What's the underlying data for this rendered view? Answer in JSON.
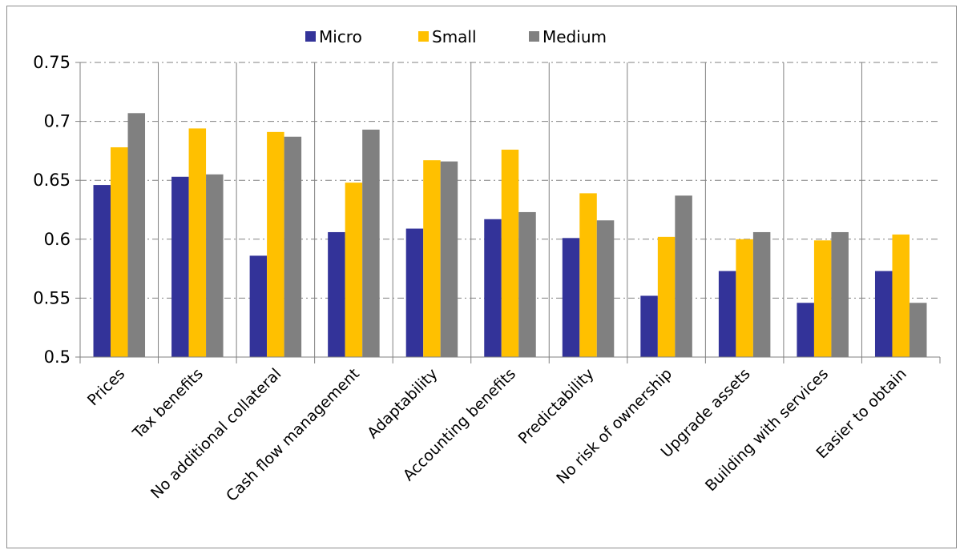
{
  "chart_data": {
    "type": "bar",
    "categories": [
      "Prices",
      "Tax benefits",
      "No additional collateral",
      "Cash flow management",
      "Adaptability",
      "Accounting benefits",
      "Predictability",
      "No risk of ownership",
      "Upgrade assets",
      "Building with services",
      "Easier to obtain"
    ],
    "series": [
      {
        "name": "Micro",
        "color": "#333399",
        "values": [
          0.646,
          0.653,
          0.586,
          0.606,
          0.609,
          0.617,
          0.601,
          0.552,
          0.573,
          0.546,
          0.573
        ]
      },
      {
        "name": "Small",
        "color": "#FFC000",
        "values": [
          0.678,
          0.694,
          0.691,
          0.648,
          0.667,
          0.676,
          0.639,
          0.602,
          0.6,
          0.599,
          0.604
        ]
      },
      {
        "name": "Medium",
        "color": "#808080",
        "values": [
          0.707,
          0.655,
          0.687,
          0.693,
          0.666,
          0.623,
          0.616,
          0.637,
          0.606,
          0.606,
          0.546
        ]
      }
    ],
    "ylim": [
      0.5,
      0.75
    ],
    "yticks": [
      "0.5",
      "0.55",
      "0.6",
      "0.65",
      "0.7",
      "0.75"
    ],
    "grid": "dash-dot horizontal",
    "legend_position": "top"
  }
}
